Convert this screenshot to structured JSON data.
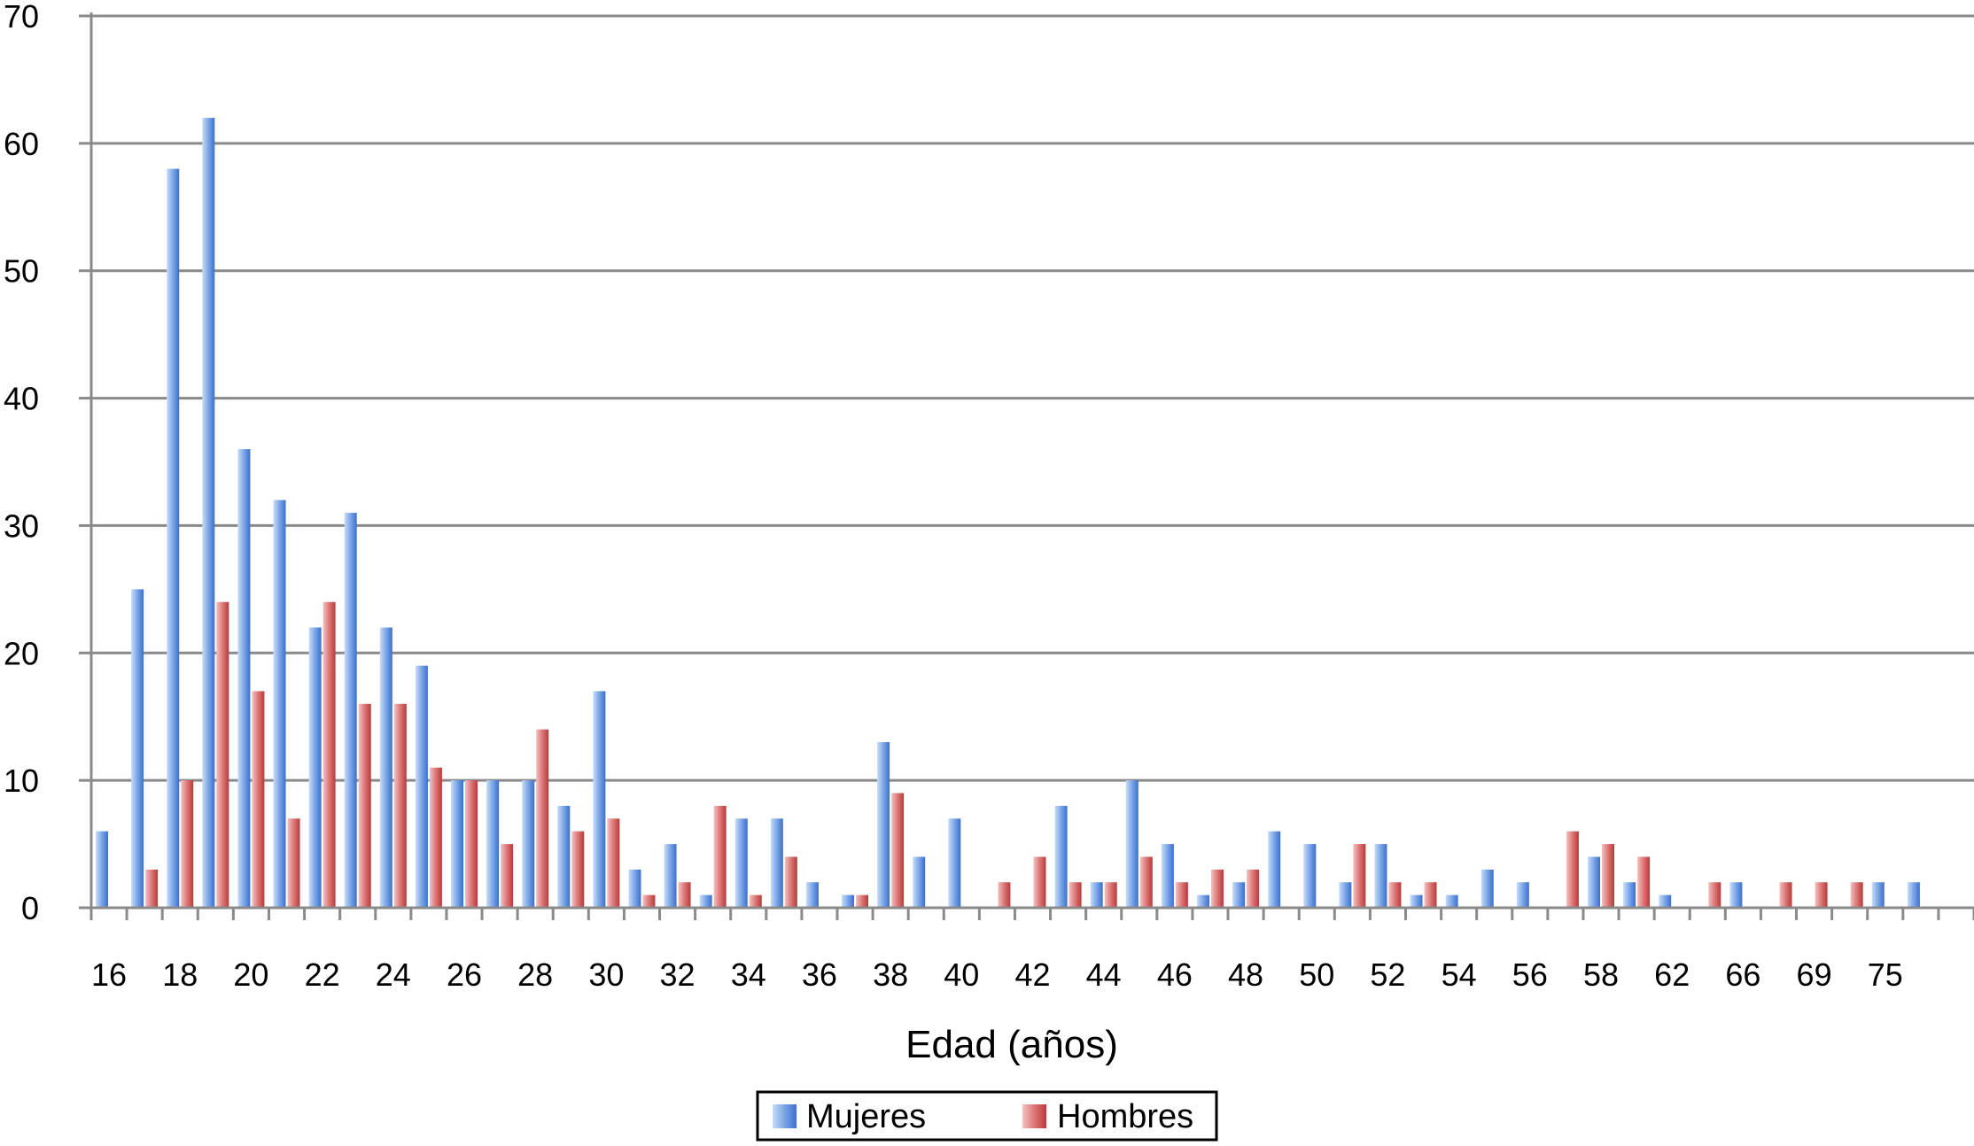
{
  "chart_data": {
    "type": "bar",
    "title": "",
    "xlabel": "Edad (años)",
    "ylabel": "",
    "ylim": [
      0,
      70
    ],
    "yticks": [
      "0",
      "10",
      "20",
      "30",
      "40",
      "50",
      "60",
      "70"
    ],
    "grid": true,
    "legend_position": "bottom",
    "categories": [
      "16",
      "17",
      "18",
      "19",
      "20",
      "21",
      "22",
      "23",
      "24",
      "25",
      "26",
      "27",
      "28",
      "29",
      "30",
      "31",
      "32",
      "33",
      "34",
      "35",
      "36",
      "37",
      "38",
      "39",
      "40",
      "41",
      "42",
      "43",
      "44",
      "45",
      "46",
      "47",
      "48",
      "49",
      "50",
      "51",
      "52",
      "53",
      "54",
      "55",
      "56",
      "57",
      "58",
      "59",
      "61",
      "62",
      "64",
      "66",
      "68",
      "69",
      "70",
      "72",
      "75"
    ],
    "xtick_labels": [
      "16",
      "18",
      "20",
      "22",
      "24",
      "26",
      "28",
      "30",
      "32",
      "34",
      "36",
      "38",
      "40",
      "42",
      "44",
      "46",
      "48",
      "50",
      "52",
      "54",
      "56",
      "58",
      "62",
      "66",
      "69",
      "75"
    ],
    "series": [
      {
        "name": "Mujeres",
        "color": "#6F9BE0",
        "values": [
          6,
          25,
          58,
          62,
          36,
          32,
          22,
          31,
          22,
          19,
          10,
          10,
          10,
          8,
          17,
          3,
          5,
          1,
          7,
          7,
          2,
          1,
          13,
          4,
          7,
          0,
          0,
          8,
          2,
          10,
          5,
          1,
          2,
          6,
          5,
          2,
          5,
          1,
          1,
          3,
          2,
          0,
          4,
          2,
          1,
          0,
          2,
          0,
          0,
          0,
          2,
          2,
          0
        ]
      },
      {
        "name": "Hombres",
        "color": "#D76A6A",
        "values": [
          0,
          3,
          10,
          24,
          17,
          7,
          24,
          16,
          16,
          11,
          10,
          5,
          14,
          6,
          7,
          1,
          2,
          8,
          1,
          4,
          0,
          1,
          9,
          0,
          0,
          2,
          4,
          2,
          2,
          4,
          2,
          3,
          3,
          0,
          0,
          5,
          2,
          2,
          0,
          0,
          0,
          6,
          5,
          4,
          0,
          2,
          0,
          2,
          2,
          2,
          0,
          0,
          0
        ]
      }
    ]
  }
}
